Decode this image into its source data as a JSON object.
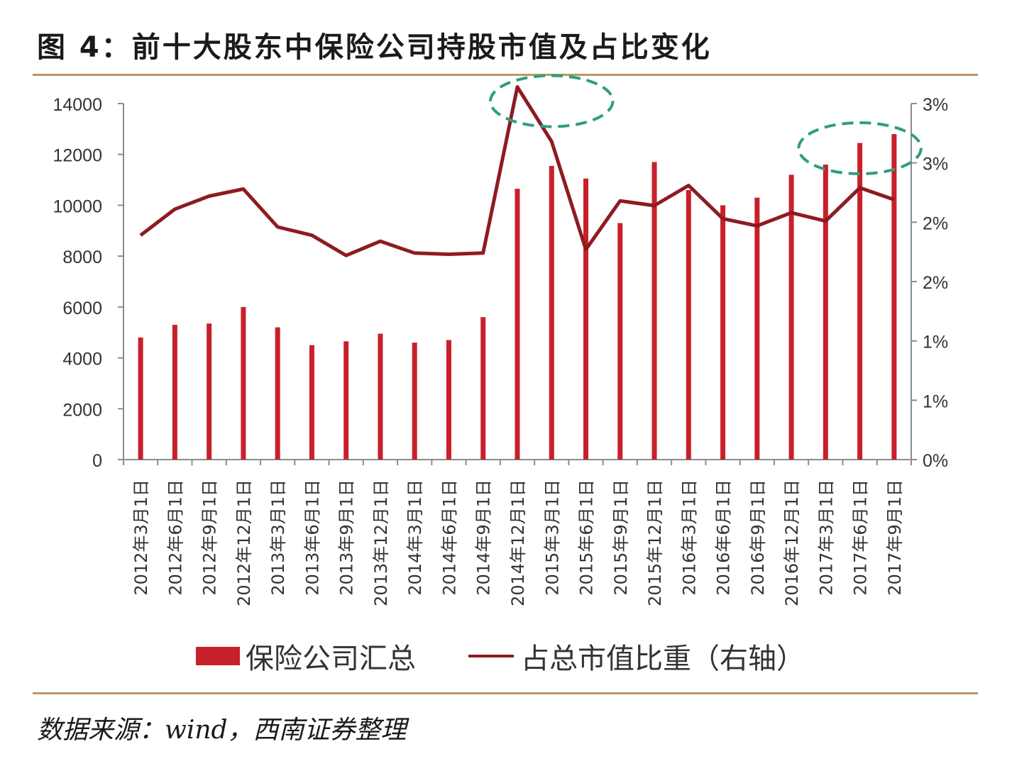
{
  "page": {
    "title": "图 4：前十大股东中保险公司持股市值及占比变化",
    "source": "数据来源：wind，西南证券整理"
  },
  "colors": {
    "bar": "#c8202a",
    "line": "#8e1b22",
    "highlight": "#2f9d80",
    "rule": "#b89a5e",
    "axis": "#8c8c8c"
  },
  "chart_data": {
    "type": "bar",
    "title": "",
    "xlabel": "",
    "ylabel": "",
    "categories": [
      "2012年3月1日",
      "2012年6月1日",
      "2012年9月1日",
      "2012年12月1日",
      "2013年3月1日",
      "2013年6月1日",
      "2013年9月1日",
      "2013年12月1日",
      "2014年3月1日",
      "2014年6月1日",
      "2014年9月1日",
      "2014年12月1日",
      "2015年3月1日",
      "2015年6月1日",
      "2015年9月1日",
      "2015年12月1日",
      "2016年3月1日",
      "2016年6月1日",
      "2016年9月1日",
      "2016年12月1日",
      "2017年3月1日",
      "2017年6月1日",
      "2017年9月1日"
    ],
    "series": [
      {
        "name": "保险公司汇总",
        "type": "bar",
        "axis": "left",
        "values": [
          4800,
          5300,
          5350,
          6000,
          5200,
          4500,
          4650,
          4950,
          4600,
          4700,
          5600,
          10650,
          11550,
          11050,
          9300,
          11700,
          10600,
          10000,
          10300,
          11200,
          11600,
          12450,
          12800
        ]
      },
      {
        "name": "占总市值比重（右轴）",
        "type": "line",
        "axis": "right",
        "values": [
          1.89,
          2.11,
          2.22,
          2.28,
          1.96,
          1.89,
          1.72,
          1.84,
          1.74,
          1.73,
          1.74,
          3.14,
          2.68,
          1.77,
          2.18,
          2.14,
          2.31,
          2.03,
          1.97,
          2.08,
          2.01,
          2.29,
          2.19
        ]
      }
    ],
    "y_left": {
      "ylim": [
        0,
        14000
      ],
      "ticks": [
        "0",
        "2000",
        "4000",
        "6000",
        "8000",
        "10000",
        "12000",
        "14000"
      ]
    },
    "y_right": {
      "ylim": [
        0,
        3.0
      ],
      "ticks": [
        "0%",
        "1%",
        "1%",
        "2%",
        "2%",
        "3%",
        "3%"
      ]
    },
    "grid": false,
    "legend": "bottom",
    "highlights": [
      {
        "category_start": "2014年12月1日",
        "category_end": "2015年6月1日"
      },
      {
        "category_start": "2017年3月1日",
        "category_end": "2017年9月1日"
      }
    ]
  }
}
